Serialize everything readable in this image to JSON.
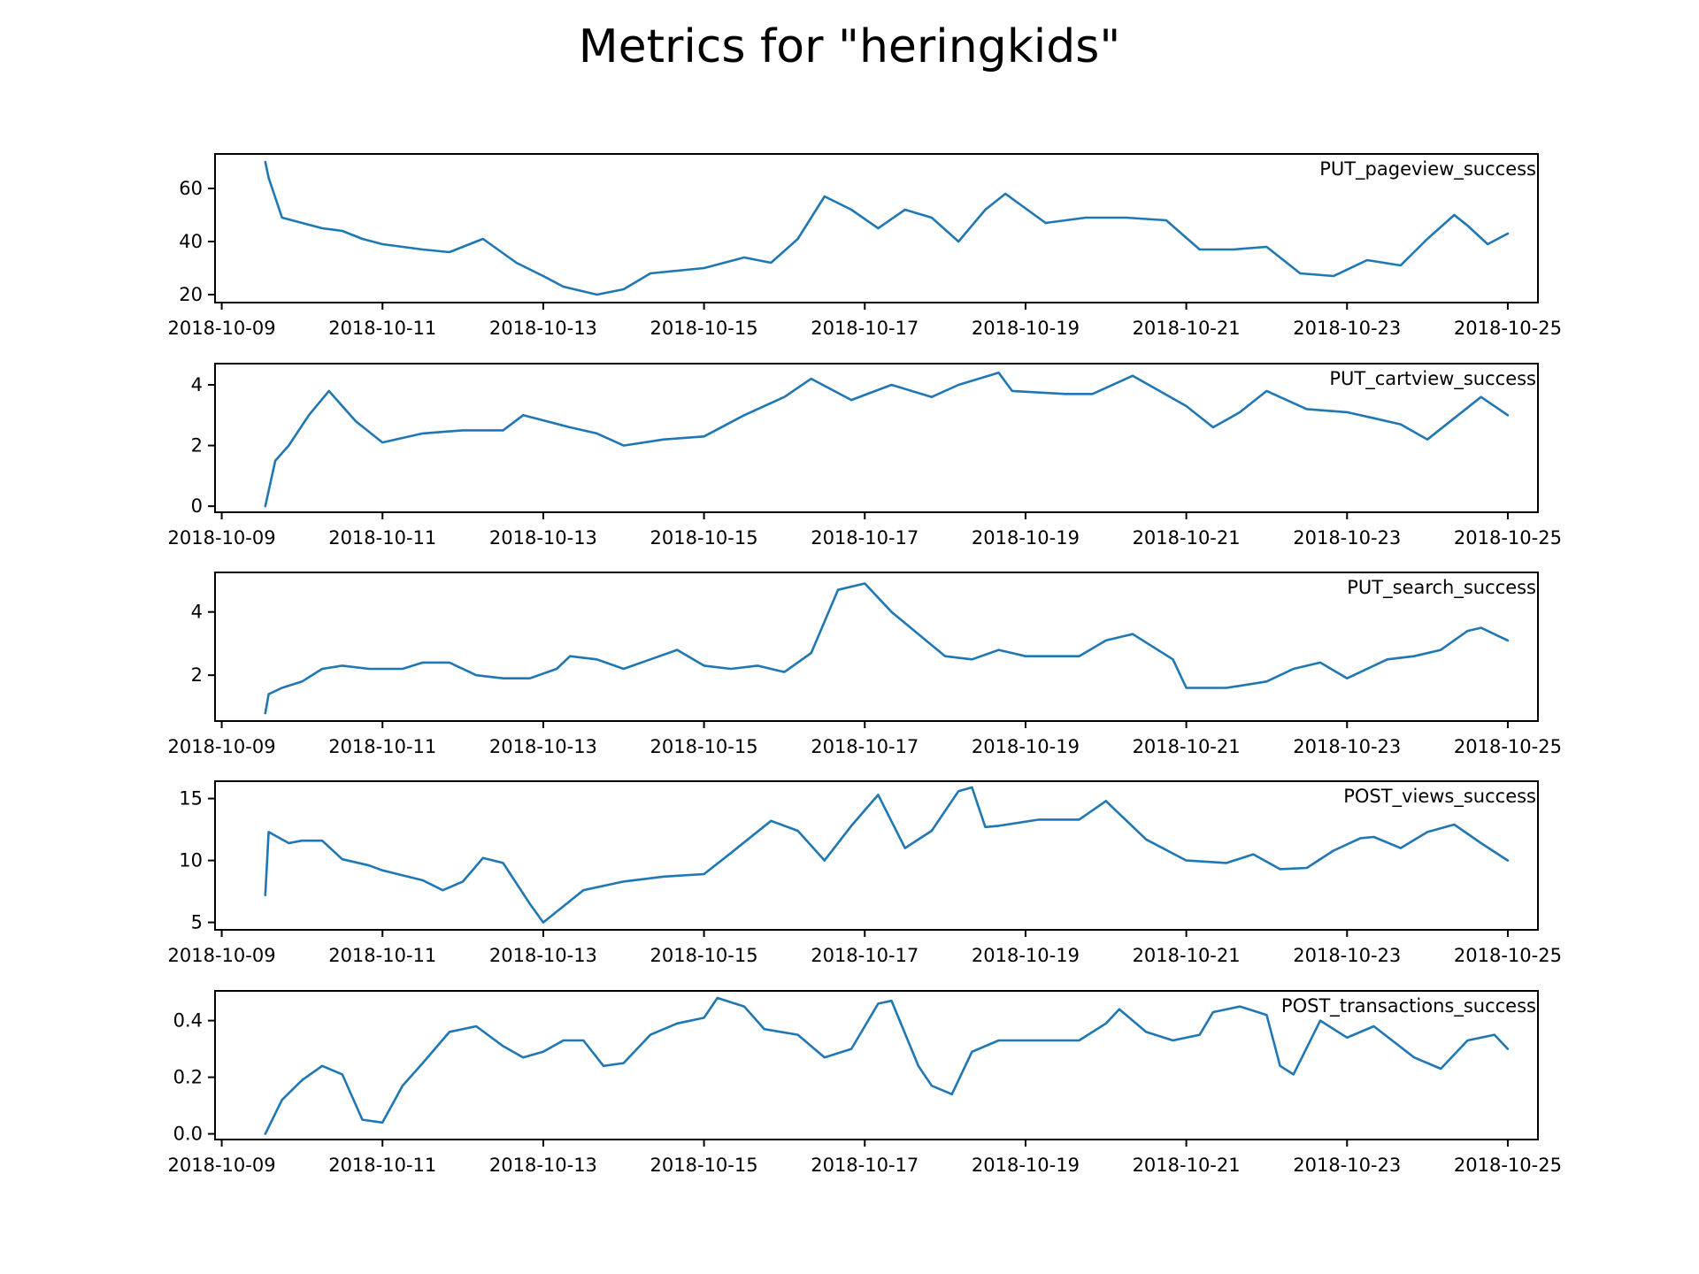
{
  "figure": {
    "title": "Metrics for \"heringkids\""
  },
  "colors": {
    "line": "#1f77b4",
    "axes": "#000000",
    "background": "#ffffff"
  },
  "chart_data": [
    {
      "type": "line",
      "series_name": "PUT_pageview_success",
      "xlim": [
        "2018-10-08T22:00",
        "2018-10-25T09:00"
      ],
      "ylim": [
        17,
        73
      ],
      "xticks": [
        "2018-10-09",
        "2018-10-11",
        "2018-10-13",
        "2018-10-15",
        "2018-10-17",
        "2018-10-19",
        "2018-10-21",
        "2018-10-23",
        "2018-10-25"
      ],
      "yticks": [
        20,
        40,
        60
      ],
      "x": [
        "2018-10-09T13:00",
        "2018-10-09T14:00",
        "2018-10-09T18:00",
        "2018-10-10T00:00",
        "2018-10-10T06:00",
        "2018-10-10T12:00",
        "2018-10-10T18:00",
        "2018-10-11T00:00",
        "2018-10-11T12:00",
        "2018-10-11T20:00",
        "2018-10-12T06:00",
        "2018-10-12T16:00",
        "2018-10-13T00:00",
        "2018-10-13T06:00",
        "2018-10-13T16:00",
        "2018-10-14T00:00",
        "2018-10-14T08:00",
        "2018-10-14T16:00",
        "2018-10-15T00:00",
        "2018-10-15T12:00",
        "2018-10-15T20:00",
        "2018-10-16T04:00",
        "2018-10-16T12:00",
        "2018-10-16T20:00",
        "2018-10-17T04:00",
        "2018-10-17T12:00",
        "2018-10-17T20:00",
        "2018-10-18T04:00",
        "2018-10-18T12:00",
        "2018-10-18T18:00",
        "2018-10-19T06:00",
        "2018-10-19T18:00",
        "2018-10-20T06:00",
        "2018-10-20T18:00",
        "2018-10-21T04:00",
        "2018-10-21T14:00",
        "2018-10-22T00:00",
        "2018-10-22T10:00",
        "2018-10-22T20:00",
        "2018-10-23T06:00",
        "2018-10-23T16:00",
        "2018-10-24T00:00",
        "2018-10-24T08:00",
        "2018-10-24T12:00",
        "2018-10-24T18:00",
        "2018-10-25T00:00"
      ],
      "y": [
        70,
        64,
        49,
        47,
        45,
        44,
        41,
        39,
        37,
        36,
        41,
        32,
        27,
        23,
        20,
        22,
        28,
        29,
        30,
        34,
        32,
        41,
        57,
        52,
        45,
        52,
        49,
        40,
        52,
        58,
        47,
        49,
        49,
        48,
        37,
        37,
        38,
        28,
        27,
        33,
        31,
        41,
        50,
        46,
        39,
        43
      ]
    },
    {
      "type": "line",
      "series_name": "PUT_cartview_success",
      "xlim": [
        "2018-10-08T22:00",
        "2018-10-25T09:00"
      ],
      "ylim": [
        -0.2,
        4.7
      ],
      "xticks": [
        "2018-10-09",
        "2018-10-11",
        "2018-10-13",
        "2018-10-15",
        "2018-10-17",
        "2018-10-19",
        "2018-10-21",
        "2018-10-23",
        "2018-10-25"
      ],
      "yticks": [
        0,
        2,
        4
      ],
      "x": [
        "2018-10-09T13:00",
        "2018-10-09T16:00",
        "2018-10-09T20:00",
        "2018-10-10T02:00",
        "2018-10-10T08:00",
        "2018-10-10T16:00",
        "2018-10-11T00:00",
        "2018-10-11T12:00",
        "2018-10-12T00:00",
        "2018-10-12T12:00",
        "2018-10-12T18:00",
        "2018-10-13T08:00",
        "2018-10-13T16:00",
        "2018-10-14T00:00",
        "2018-10-14T12:00",
        "2018-10-15T00:00",
        "2018-10-15T12:00",
        "2018-10-16T00:00",
        "2018-10-16T08:00",
        "2018-10-16T20:00",
        "2018-10-17T08:00",
        "2018-10-17T20:00",
        "2018-10-18T04:00",
        "2018-10-18T16:00",
        "2018-10-18T20:00",
        "2018-10-19T12:00",
        "2018-10-19T20:00",
        "2018-10-20T08:00",
        "2018-10-20T16:00",
        "2018-10-21T00:00",
        "2018-10-21T08:00",
        "2018-10-21T16:00",
        "2018-10-22T00:00",
        "2018-10-22T12:00",
        "2018-10-23T00:00",
        "2018-10-23T08:00",
        "2018-10-23T16:00",
        "2018-10-24T00:00",
        "2018-10-24T08:00",
        "2018-10-24T16:00",
        "2018-10-25T00:00"
      ],
      "y": [
        0,
        1.5,
        2.0,
        3.0,
        3.8,
        2.8,
        2.1,
        2.4,
        2.5,
        2.5,
        3.0,
        2.6,
        2.4,
        2.0,
        2.2,
        2.3,
        3.0,
        3.6,
        4.2,
        3.5,
        4.0,
        3.6,
        4.0,
        4.4,
        3.8,
        3.7,
        3.7,
        4.3,
        3.8,
        3.3,
        2.6,
        3.1,
        3.8,
        3.2,
        3.1,
        2.9,
        2.7,
        2.2,
        2.9,
        3.6,
        3.0
      ]
    },
    {
      "type": "line",
      "series_name": "PUT_search_success",
      "xlim": [
        "2018-10-08T22:00",
        "2018-10-25T09:00"
      ],
      "ylim": [
        0.55,
        5.25
      ],
      "xticks": [
        "2018-10-09",
        "2018-10-11",
        "2018-10-13",
        "2018-10-15",
        "2018-10-17",
        "2018-10-19",
        "2018-10-21",
        "2018-10-23",
        "2018-10-25"
      ],
      "yticks": [
        2,
        4
      ],
      "x": [
        "2018-10-09T13:00",
        "2018-10-09T14:00",
        "2018-10-09T18:00",
        "2018-10-10T00:00",
        "2018-10-10T06:00",
        "2018-10-10T12:00",
        "2018-10-10T20:00",
        "2018-10-11T06:00",
        "2018-10-11T12:00",
        "2018-10-11T20:00",
        "2018-10-12T04:00",
        "2018-10-12T12:00",
        "2018-10-12T20:00",
        "2018-10-13T04:00",
        "2018-10-13T08:00",
        "2018-10-13T16:00",
        "2018-10-14T00:00",
        "2018-10-14T08:00",
        "2018-10-14T16:00",
        "2018-10-15T00:00",
        "2018-10-15T08:00",
        "2018-10-15T16:00",
        "2018-10-16T00:00",
        "2018-10-16T08:00",
        "2018-10-16T16:00",
        "2018-10-17T00:00",
        "2018-10-17T08:00",
        "2018-10-17T16:00",
        "2018-10-18T00:00",
        "2018-10-18T08:00",
        "2018-10-18T16:00",
        "2018-10-19T00:00",
        "2018-10-19T16:00",
        "2018-10-20T00:00",
        "2018-10-20T08:00",
        "2018-10-20T20:00",
        "2018-10-21T00:00",
        "2018-10-21T12:00",
        "2018-10-22T00:00",
        "2018-10-22T08:00",
        "2018-10-22T16:00",
        "2018-10-23T00:00",
        "2018-10-23T12:00",
        "2018-10-23T20:00",
        "2018-10-24T04:00",
        "2018-10-24T12:00",
        "2018-10-24T16:00",
        "2018-10-25T00:00"
      ],
      "y": [
        0.8,
        1.4,
        1.6,
        1.8,
        2.2,
        2.3,
        2.2,
        2.2,
        2.4,
        2.4,
        2.0,
        1.9,
        1.9,
        2.2,
        2.6,
        2.5,
        2.2,
        2.5,
        2.8,
        2.3,
        2.2,
        2.3,
        2.1,
        2.7,
        4.7,
        4.9,
        4.0,
        3.3,
        2.6,
        2.5,
        2.8,
        2.6,
        2.6,
        3.1,
        3.3,
        2.5,
        1.6,
        1.6,
        1.8,
        2.2,
        2.4,
        1.9,
        2.5,
        2.6,
        2.8,
        3.4,
        3.5,
        3.1
      ]
    },
    {
      "type": "line",
      "series_name": "POST_views_success",
      "xlim": [
        "2018-10-08T22:00",
        "2018-10-25T09:00"
      ],
      "ylim": [
        4.4,
        16.4
      ],
      "xticks": [
        "2018-10-09",
        "2018-10-11",
        "2018-10-13",
        "2018-10-15",
        "2018-10-17",
        "2018-10-19",
        "2018-10-21",
        "2018-10-23",
        "2018-10-25"
      ],
      "yticks": [
        5,
        10,
        15
      ],
      "x": [
        "2018-10-09T13:00",
        "2018-10-09T14:00",
        "2018-10-09T20:00",
        "2018-10-10T00:00",
        "2018-10-10T06:00",
        "2018-10-10T12:00",
        "2018-10-10T20:00",
        "2018-10-11T00:00",
        "2018-10-11T12:00",
        "2018-10-11T18:00",
        "2018-10-12T00:00",
        "2018-10-12T06:00",
        "2018-10-12T12:00",
        "2018-10-12T20:00",
        "2018-10-13T00:00",
        "2018-10-13T12:00",
        "2018-10-14T00:00",
        "2018-10-14T12:00",
        "2018-10-15T00:00",
        "2018-10-15T08:00",
        "2018-10-15T20:00",
        "2018-10-16T04:00",
        "2018-10-16T12:00",
        "2018-10-16T20:00",
        "2018-10-17T04:00",
        "2018-10-17T12:00",
        "2018-10-17T20:00",
        "2018-10-18T04:00",
        "2018-10-18T08:00",
        "2018-10-18T12:00",
        "2018-10-18T16:00",
        "2018-10-19T04:00",
        "2018-10-19T16:00",
        "2018-10-20T00:00",
        "2018-10-20T12:00",
        "2018-10-21T00:00",
        "2018-10-21T12:00",
        "2018-10-21T20:00",
        "2018-10-22T04:00",
        "2018-10-22T12:00",
        "2018-10-22T20:00",
        "2018-10-23T04:00",
        "2018-10-23T08:00",
        "2018-10-23T16:00",
        "2018-10-24T00:00",
        "2018-10-24T08:00",
        "2018-10-24T16:00",
        "2018-10-25T00:00"
      ],
      "y": [
        7.2,
        12.3,
        11.4,
        11.6,
        11.6,
        10.1,
        9.6,
        9.2,
        8.4,
        7.6,
        8.3,
        10.2,
        9.8,
        6.5,
        5.0,
        7.6,
        8.3,
        8.7,
        8.9,
        10.6,
        13.2,
        12.4,
        10.0,
        12.8,
        15.3,
        11.0,
        12.4,
        15.6,
        15.9,
        12.7,
        12.8,
        13.3,
        13.3,
        14.8,
        11.7,
        10.0,
        9.8,
        10.5,
        9.3,
        9.4,
        10.8,
        11.8,
        11.9,
        11.0,
        12.3,
        12.9,
        11.4,
        10.0
      ]
    },
    {
      "type": "line",
      "series_name": "POST_transactions_success",
      "xlim": [
        "2018-10-08T22:00",
        "2018-10-25T09:00"
      ],
      "ylim": [
        -0.02,
        0.505
      ],
      "xticks": [
        "2018-10-09",
        "2018-10-11",
        "2018-10-13",
        "2018-10-15",
        "2018-10-17",
        "2018-10-19",
        "2018-10-21",
        "2018-10-23",
        "2018-10-25"
      ],
      "yticks": [
        0.0,
        0.2,
        0.4
      ],
      "xtick_labels": [
        "2018-10-09",
        "2018-10-11",
        "2018-10-13",
        "2018-10-15",
        "2018-10-17",
        "2018-10-19",
        "2018-10-21",
        "2018-10-23",
        "2018-10-25"
      ],
      "ytick_labels": [
        "0.0",
        "0.2",
        "0.4"
      ],
      "x": [
        "2018-10-09T13:00",
        "2018-10-09T18:00",
        "2018-10-10T00:00",
        "2018-10-10T06:00",
        "2018-10-10T12:00",
        "2018-10-10T18:00",
        "2018-10-11T00:00",
        "2018-10-11T06:00",
        "2018-10-11T12:00",
        "2018-10-11T20:00",
        "2018-10-12T04:00",
        "2018-10-12T12:00",
        "2018-10-12T18:00",
        "2018-10-13T00:00",
        "2018-10-13T06:00",
        "2018-10-13T12:00",
        "2018-10-13T18:00",
        "2018-10-14T00:00",
        "2018-10-14T08:00",
        "2018-10-14T16:00",
        "2018-10-15T00:00",
        "2018-10-15T04:00",
        "2018-10-15T12:00",
        "2018-10-15T18:00",
        "2018-10-16T04:00",
        "2018-10-16T12:00",
        "2018-10-16T20:00",
        "2018-10-17T04:00",
        "2018-10-17T08:00",
        "2018-10-17T16:00",
        "2018-10-17T20:00",
        "2018-10-18T02:00",
        "2018-10-18T08:00",
        "2018-10-18T16:00",
        "2018-10-19T04:00",
        "2018-10-19T16:00",
        "2018-10-20T00:00",
        "2018-10-20T04:00",
        "2018-10-20T12:00",
        "2018-10-20T20:00",
        "2018-10-21T04:00",
        "2018-10-21T08:00",
        "2018-10-21T16:00",
        "2018-10-22T00:00",
        "2018-10-22T04:00",
        "2018-10-22T08:00",
        "2018-10-22T16:00",
        "2018-10-23T00:00",
        "2018-10-23T08:00",
        "2018-10-23T20:00",
        "2018-10-24T04:00",
        "2018-10-24T12:00",
        "2018-10-24T20:00",
        "2018-10-25T00:00"
      ],
      "y": [
        0.0,
        0.12,
        0.19,
        0.24,
        0.21,
        0.05,
        0.04,
        0.17,
        0.25,
        0.36,
        0.38,
        0.31,
        0.27,
        0.29,
        0.33,
        0.33,
        0.24,
        0.25,
        0.35,
        0.39,
        0.41,
        0.48,
        0.45,
        0.37,
        0.35,
        0.27,
        0.3,
        0.46,
        0.47,
        0.24,
        0.17,
        0.14,
        0.29,
        0.33,
        0.33,
        0.33,
        0.39,
        0.44,
        0.36,
        0.33,
        0.35,
        0.43,
        0.45,
        0.42,
        0.24,
        0.21,
        0.4,
        0.34,
        0.38,
        0.27,
        0.23,
        0.33,
        0.35,
        0.3
      ]
    }
  ]
}
